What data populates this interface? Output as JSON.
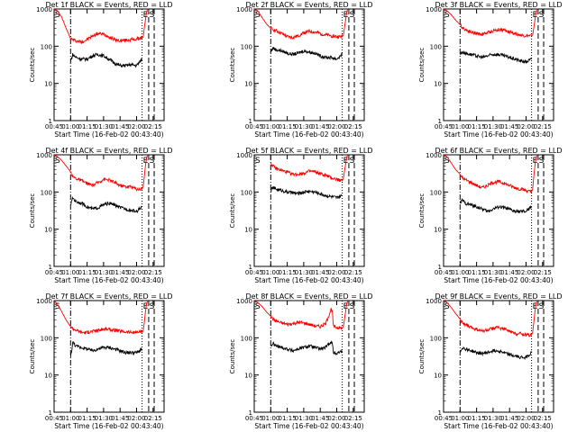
{
  "common": {
    "xlabel": "Start Time (16-Feb-02 00:43:40)",
    "ylabel": "Counts/sec",
    "x_ticks": [
      "00:45",
      "01:00",
      "01:15",
      "01:30",
      "01:45",
      "02:00",
      "02:15"
    ],
    "x_tick_minutes": [
      45,
      60,
      75,
      90,
      105,
      120,
      135
    ],
    "x_range_minutes": [
      45,
      145
    ],
    "y_ticks": [
      "1",
      "10",
      "100",
      "1000"
    ],
    "y_tick_values": [
      1,
      10,
      100,
      1000
    ],
    "ylim": [
      1,
      1000
    ],
    "y_scale": "log",
    "marker_labels": {
      "start": "S",
      "end": "E",
      "start2": "S"
    },
    "colors": {
      "events": "#000000",
      "lld": "#ff0000"
    }
  },
  "chart_data": [
    {
      "type": "line",
      "title": "Det 1f BLACK = Events, RED = LLD",
      "markers": {
        "dashdot": 60,
        "dotted": 125,
        "dashed1": 131,
        "dashed2": 136
      },
      "series": [
        {
          "values_minutes": [
            45,
            48,
            52,
            56,
            60,
            62,
            65,
            70,
            75,
            80,
            85,
            90,
            95,
            100,
            105,
            110,
            115,
            120,
            125,
            126,
            127,
            128,
            129,
            130
          ],
          "values": [
            1000,
            900,
            600,
            300,
            160,
            150,
            140,
            130,
            150,
            190,
            220,
            210,
            180,
            150,
            140,
            145,
            150,
            155,
            170,
            175,
            300,
            500,
            800,
            1000
          ]
        },
        {
          "values_minutes": [
            60,
            62,
            65,
            70,
            75,
            80,
            85,
            90,
            95,
            100,
            105,
            110,
            115,
            120,
            125
          ],
          "values": [
            40,
            60,
            50,
            45,
            45,
            55,
            60,
            55,
            45,
            35,
            30,
            30,
            32,
            30,
            45
          ]
        }
      ]
    },
    {
      "type": "line",
      "title": "Det 2f BLACK = Events, RED = LLD",
      "markers": {
        "dashdot": 60,
        "dotted": 125,
        "dashed1": 131,
        "dashed2": 136
      },
      "series": [
        {
          "values_minutes": [
            45,
            48,
            52,
            56,
            60,
            62,
            65,
            70,
            75,
            80,
            85,
            90,
            95,
            100,
            105,
            110,
            115,
            120,
            125,
            126,
            127,
            128,
            129,
            130
          ],
          "values": [
            1000,
            900,
            600,
            400,
            300,
            280,
            260,
            220,
            180,
            170,
            190,
            230,
            250,
            240,
            220,
            200,
            190,
            180,
            180,
            200,
            300,
            500,
            800,
            1000
          ]
        },
        {
          "values_minutes": [
            60,
            62,
            65,
            70,
            75,
            80,
            85,
            90,
            95,
            100,
            105,
            110,
            115,
            120,
            125
          ],
          "values": [
            70,
            90,
            80,
            75,
            65,
            60,
            65,
            75,
            70,
            65,
            55,
            50,
            50,
            45,
            60
          ]
        }
      ]
    },
    {
      "type": "line",
      "title": "Det 3f BLACK = Events, RED = LLD",
      "markers": {
        "dashdot": 60,
        "dotted": 125,
        "dashed1": 131,
        "dashed2": 136
      },
      "series": [
        {
          "values_minutes": [
            45,
            48,
            52,
            56,
            60,
            62,
            65,
            70,
            75,
            80,
            85,
            90,
            95,
            100,
            105,
            110,
            115,
            120,
            125,
            126,
            127,
            128,
            129,
            130
          ],
          "values": [
            1000,
            900,
            700,
            500,
            380,
            320,
            280,
            240,
            220,
            210,
            230,
            260,
            280,
            270,
            240,
            220,
            200,
            190,
            190,
            200,
            300,
            500,
            800,
            1000
          ]
        },
        {
          "values_minutes": [
            60,
            62,
            65,
            70,
            75,
            80,
            85,
            90,
            95,
            100,
            105,
            110,
            115,
            120,
            125
          ],
          "values": [
            60,
            70,
            65,
            60,
            55,
            50,
            55,
            60,
            60,
            55,
            50,
            45,
            40,
            38,
            45
          ]
        }
      ]
    },
    {
      "type": "line",
      "title": "Det 4f BLACK = Events, RED = LLD",
      "markers": {
        "dashdot": 60,
        "dotted": 125,
        "dashed1": 131,
        "dashed2": 136
      },
      "series": [
        {
          "values_minutes": [
            45,
            48,
            52,
            56,
            60,
            62,
            65,
            70,
            75,
            80,
            85,
            90,
            95,
            100,
            105,
            110,
            115,
            120,
            125,
            126,
            127,
            128,
            129,
            130
          ],
          "values": [
            1000,
            900,
            700,
            500,
            350,
            260,
            230,
            200,
            170,
            150,
            180,
            220,
            210,
            180,
            150,
            140,
            140,
            120,
            120,
            140,
            250,
            500,
            800,
            1000
          ]
        },
        {
          "values_minutes": [
            60,
            62,
            65,
            70,
            75,
            80,
            85,
            90,
            95,
            100,
            105,
            110,
            115,
            120,
            125
          ],
          "values": [
            45,
            70,
            55,
            50,
            40,
            35,
            38,
            45,
            50,
            45,
            38,
            35,
            32,
            30,
            40
          ]
        }
      ]
    },
    {
      "type": "line",
      "title": "Det 5f BLACK = Events, RED = LLD",
      "markers": {
        "dashdot": 60,
        "dotted": 125,
        "dashed1": 131,
        "dashed2": 136
      },
      "series": [
        {
          "values_minutes": [
            60,
            62,
            65,
            70,
            75,
            80,
            85,
            90,
            95,
            100,
            105,
            110,
            115,
            120,
            125,
            126,
            127,
            128,
            129,
            130
          ],
          "values": [
            600,
            500,
            420,
            380,
            340,
            300,
            300,
            320,
            360,
            350,
            310,
            280,
            240,
            220,
            200,
            230,
            350,
            550,
            850,
            1000
          ]
        },
        {
          "values_minutes": [
            60,
            62,
            65,
            70,
            75,
            80,
            85,
            90,
            95,
            100,
            105,
            110,
            115,
            120,
            125
          ],
          "values": [
            110,
            130,
            120,
            110,
            100,
            95,
            90,
            100,
            105,
            100,
            90,
            80,
            75,
            70,
            80
          ]
        }
      ]
    },
    {
      "type": "line",
      "title": "Det 6f BLACK = Events, RED = LLD",
      "markers": {
        "dashdot": 60,
        "dotted": 125,
        "dashed1": 131,
        "dashed2": 136
      },
      "series": [
        {
          "values_minutes": [
            45,
            48,
            52,
            56,
            60,
            62,
            65,
            70,
            75,
            80,
            85,
            90,
            95,
            100,
            105,
            110,
            115,
            120,
            125,
            126,
            127,
            128,
            129,
            130
          ],
          "values": [
            1000,
            900,
            600,
            400,
            300,
            240,
            210,
            180,
            150,
            130,
            150,
            180,
            190,
            170,
            150,
            130,
            120,
            110,
            100,
            120,
            250,
            500,
            800,
            1000
          ]
        },
        {
          "values_minutes": [
            60,
            62,
            65,
            70,
            75,
            80,
            85,
            90,
            95,
            100,
            105,
            110,
            115,
            120,
            125
          ],
          "values": [
            50,
            60,
            50,
            45,
            40,
            35,
            30,
            35,
            40,
            38,
            34,
            30,
            30,
            30,
            40
          ]
        }
      ]
    },
    {
      "type": "line",
      "title": "Det 7f BLACK = Events, RED = LLD",
      "markers": {
        "dashdot": 60,
        "dotted": 125,
        "dashed1": 131,
        "dashed2": 136
      },
      "series": [
        {
          "values_minutes": [
            45,
            48,
            52,
            56,
            60,
            62,
            65,
            70,
            75,
            80,
            85,
            90,
            95,
            100,
            105,
            110,
            115,
            120,
            125,
            126,
            127,
            128,
            129,
            130
          ],
          "values": [
            1000,
            800,
            500,
            300,
            200,
            180,
            160,
            140,
            140,
            150,
            160,
            170,
            170,
            160,
            150,
            145,
            140,
            140,
            145,
            150,
            250,
            500,
            800,
            1000
          ]
        },
        {
          "values_minutes": [
            60,
            62,
            65,
            70,
            75,
            80,
            85,
            90,
            95,
            100,
            105,
            110,
            115,
            120,
            125
          ],
          "values": [
            30,
            75,
            60,
            55,
            50,
            45,
            50,
            55,
            55,
            50,
            45,
            40,
            40,
            40,
            50
          ]
        }
      ]
    },
    {
      "type": "line",
      "title": "Det 8f BLACK = Events, RED = LLD",
      "markers": {
        "dashdot": 60,
        "dotted": 125,
        "dashed1": 131,
        "dashed2": 136
      },
      "series": [
        {
          "values_minutes": [
            45,
            48,
            52,
            56,
            60,
            62,
            65,
            70,
            75,
            80,
            85,
            90,
            95,
            100,
            105,
            110,
            115,
            116,
            117,
            120,
            125,
            126,
            127,
            128,
            129,
            130
          ],
          "values": [
            1000,
            900,
            700,
            500,
            380,
            320,
            280,
            250,
            230,
            240,
            260,
            250,
            230,
            210,
            200,
            240,
            600,
            500,
            200,
            190,
            180,
            200,
            300,
            500,
            800,
            1000
          ]
        },
        {
          "values_minutes": [
            60,
            62,
            65,
            70,
            75,
            80,
            85,
            90,
            95,
            100,
            105,
            110,
            115,
            116,
            117,
            120,
            125
          ],
          "values": [
            60,
            70,
            60,
            55,
            50,
            45,
            50,
            55,
            60,
            55,
            50,
            55,
            80,
            70,
            40,
            38,
            45
          ]
        }
      ]
    },
    {
      "type": "line",
      "title": "Det 9f BLACK = Events, RED = LLD",
      "markers": {
        "dashdot": 60,
        "dotted": 125,
        "dashed1": 131,
        "dashed2": 136
      },
      "series": [
        {
          "values_minutes": [
            45,
            48,
            52,
            56,
            60,
            62,
            65,
            70,
            75,
            80,
            85,
            90,
            95,
            100,
            105,
            110,
            115,
            120,
            125,
            126,
            127,
            128,
            129,
            130
          ],
          "values": [
            1000,
            900,
            650,
            450,
            320,
            260,
            220,
            190,
            170,
            150,
            160,
            180,
            190,
            170,
            150,
            130,
            130,
            120,
            120,
            140,
            250,
            500,
            800,
            1000
          ]
        },
        {
          "values_minutes": [
            60,
            62,
            65,
            70,
            75,
            80,
            85,
            90,
            95,
            100,
            105,
            110,
            115,
            120,
            125
          ],
          "values": [
            40,
            55,
            50,
            45,
            40,
            38,
            40,
            45,
            45,
            40,
            35,
            32,
            30,
            30,
            40
          ]
        }
      ]
    }
  ]
}
